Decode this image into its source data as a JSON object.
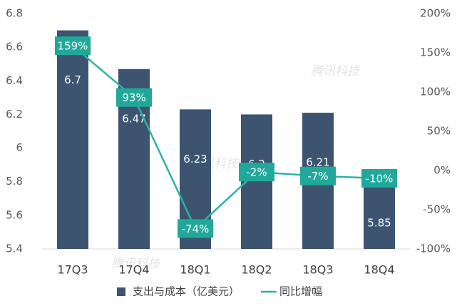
{
  "chart_data": {
    "type": "bar",
    "watermark": "腾讯科技",
    "categories": [
      "17Q3",
      "17Q4",
      "18Q1",
      "18Q2",
      "18Q3",
      "18Q4"
    ],
    "series": [
      {
        "name": "支出与成本（亿美元）",
        "type": "bar",
        "color": "#3d5470",
        "values": [
          6.7,
          6.47,
          6.23,
          6.2,
          6.21,
          5.85
        ]
      },
      {
        "name": "同比增幅",
        "type": "line",
        "axis": "y2",
        "color": "#2bb3a3",
        "values": [
          159,
          93,
          -74,
          -2,
          -7,
          -10
        ],
        "value_labels": [
          "159%",
          "93%",
          "-74%",
          "-2%",
          "-7%",
          "-10%"
        ]
      }
    ],
    "ylim": [
      5.4,
      6.8
    ],
    "yticks": [
      5.4,
      5.6,
      5.8,
      6,
      6.2,
      6.4,
      6.6,
      6.8
    ],
    "y2lim": [
      -100,
      200
    ],
    "y2ticks": [
      {
        "value": -100,
        "label": "-100%"
      },
      {
        "value": -50,
        "label": "-50%"
      },
      {
        "value": 0,
        "label": "0%"
      },
      {
        "value": 50,
        "label": "50%"
      },
      {
        "value": 100,
        "label": "100%"
      },
      {
        "value": 150,
        "label": "150%"
      },
      {
        "value": 200,
        "label": "200%"
      }
    ],
    "grid": false,
    "legend": "bottom"
  }
}
